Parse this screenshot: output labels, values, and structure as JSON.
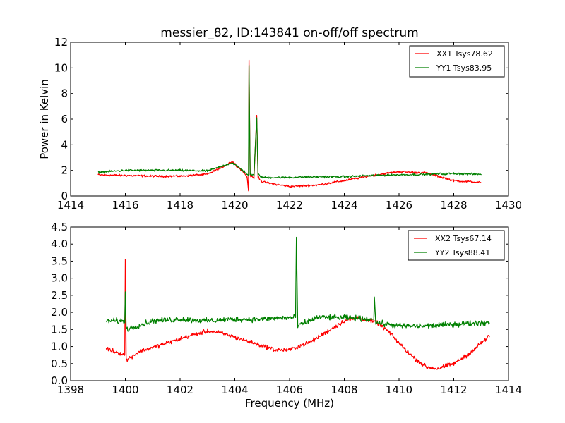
{
  "chart_data": [
    {
      "type": "line",
      "title": "messier_82, ID:143841 on-off/off spectrum",
      "xlabel": "",
      "ylabel": "Power in Kelvin",
      "xlim": [
        1414,
        1430
      ],
      "ylim": [
        0,
        12
      ],
      "xticks": [
        "1414",
        "1416",
        "1418",
        "1420",
        "1422",
        "1424",
        "1426",
        "1428",
        "1430"
      ],
      "yticks": [
        "0",
        "2",
        "4",
        "6",
        "8",
        "10",
        "12"
      ],
      "legend_position": "top-right",
      "grid": false,
      "series": [
        {
          "name": "XX1 Tsys78.62",
          "color": "#ff0000",
          "noise": 0.12,
          "points": [
            [
              1415.0,
              1.65
            ],
            [
              1416.0,
              1.6
            ],
            [
              1417.0,
              1.55
            ],
            [
              1418.0,
              1.55
            ],
            [
              1419.0,
              1.7
            ],
            [
              1419.5,
              2.2
            ],
            [
              1419.9,
              2.7
            ],
            [
              1420.1,
              2.3
            ],
            [
              1420.35,
              1.8
            ],
            [
              1420.45,
              1.5
            ],
            [
              1420.5,
              0.4
            ],
            [
              1420.52,
              10.6
            ],
            [
              1420.56,
              1.6
            ],
            [
              1420.7,
              1.4
            ],
            [
              1420.8,
              6.3
            ],
            [
              1420.85,
              1.5
            ],
            [
              1421.0,
              1.1
            ],
            [
              1421.5,
              0.9
            ],
            [
              1422.0,
              0.75
            ],
            [
              1423.0,
              0.85
            ],
            [
              1424.0,
              1.2
            ],
            [
              1425.0,
              1.6
            ],
            [
              1426.0,
              1.9
            ],
            [
              1427.0,
              1.8
            ],
            [
              1427.5,
              1.5
            ],
            [
              1428.0,
              1.2
            ],
            [
              1429.0,
              1.05
            ]
          ]
        },
        {
          "name": "YY1 Tsys83.95",
          "color": "#008000",
          "noise": 0.12,
          "points": [
            [
              1415.0,
              1.85
            ],
            [
              1416.0,
              2.0
            ],
            [
              1417.0,
              2.0
            ],
            [
              1418.0,
              2.0
            ],
            [
              1419.0,
              1.95
            ],
            [
              1419.5,
              2.3
            ],
            [
              1419.9,
              2.6
            ],
            [
              1420.1,
              2.3
            ],
            [
              1420.35,
              1.9
            ],
            [
              1420.45,
              1.7
            ],
            [
              1420.5,
              1.6
            ],
            [
              1420.52,
              10.2
            ],
            [
              1420.56,
              1.7
            ],
            [
              1420.7,
              1.6
            ],
            [
              1420.8,
              6.1
            ],
            [
              1420.85,
              1.7
            ],
            [
              1421.0,
              1.45
            ],
            [
              1422.0,
              1.45
            ],
            [
              1423.0,
              1.5
            ],
            [
              1424.0,
              1.5
            ],
            [
              1425.0,
              1.6
            ],
            [
              1426.0,
              1.65
            ],
            [
              1427.0,
              1.7
            ],
            [
              1428.0,
              1.75
            ],
            [
              1429.0,
              1.7
            ]
          ]
        }
      ]
    },
    {
      "type": "line",
      "title": "",
      "xlabel": "Frequency (MHz)",
      "ylabel": "",
      "xlim": [
        1398,
        1414
      ],
      "ylim": [
        0,
        4.5
      ],
      "xticks": [
        "1398",
        "1400",
        "1402",
        "1404",
        "1406",
        "1408",
        "1410",
        "1412",
        "1414"
      ],
      "yticks": [
        "0.0",
        "0.5",
        "1.0",
        "1.5",
        "2.0",
        "2.5",
        "3.0",
        "3.5",
        "4.0",
        "4.5"
      ],
      "legend_position": "top-right",
      "grid": false,
      "series": [
        {
          "name": "XX2 Tsys67.14",
          "color": "#ff0000",
          "noise": 0.09,
          "points": [
            [
              1399.3,
              0.95
            ],
            [
              1399.8,
              0.8
            ],
            [
              1399.98,
              0.75
            ],
            [
              1400.0,
              3.55
            ],
            [
              1400.03,
              0.6
            ],
            [
              1400.5,
              0.85
            ],
            [
              1401.5,
              1.1
            ],
            [
              1402.5,
              1.35
            ],
            [
              1403.0,
              1.45
            ],
            [
              1403.5,
              1.4
            ],
            [
              1404.5,
              1.15
            ],
            [
              1405.5,
              0.9
            ],
            [
              1406.0,
              0.9
            ],
            [
              1406.8,
              1.15
            ],
            [
              1407.5,
              1.5
            ],
            [
              1408.0,
              1.75
            ],
            [
              1408.5,
              1.85
            ],
            [
              1409.2,
              1.7
            ],
            [
              1409.6,
              1.45
            ],
            [
              1410.0,
              1.1
            ],
            [
              1410.5,
              0.7
            ],
            [
              1411.0,
              0.4
            ],
            [
              1411.4,
              0.35
            ],
            [
              1412.0,
              0.5
            ],
            [
              1412.5,
              0.75
            ],
            [
              1413.0,
              1.1
            ],
            [
              1413.3,
              1.3
            ]
          ]
        },
        {
          "name": "YY2 Tsys88.41",
          "color": "#008000",
          "noise": 0.12,
          "points": [
            [
              1399.3,
              1.75
            ],
            [
              1399.98,
              1.75
            ],
            [
              1400.0,
              2.6
            ],
            [
              1400.03,
              1.5
            ],
            [
              1401.0,
              1.75
            ],
            [
              1402.0,
              1.8
            ],
            [
              1403.0,
              1.75
            ],
            [
              1404.0,
              1.8
            ],
            [
              1405.0,
              1.8
            ],
            [
              1406.0,
              1.85
            ],
            [
              1406.22,
              1.85
            ],
            [
              1406.25,
              4.2
            ],
            [
              1406.3,
              1.6
            ],
            [
              1407.0,
              1.85
            ],
            [
              1408.0,
              1.85
            ],
            [
              1409.0,
              1.8
            ],
            [
              1409.08,
              1.8
            ],
            [
              1409.1,
              2.45
            ],
            [
              1409.15,
              1.7
            ],
            [
              1410.0,
              1.6
            ],
            [
              1411.0,
              1.6
            ],
            [
              1412.0,
              1.65
            ],
            [
              1413.0,
              1.7
            ],
            [
              1413.3,
              1.7
            ]
          ]
        }
      ]
    }
  ]
}
